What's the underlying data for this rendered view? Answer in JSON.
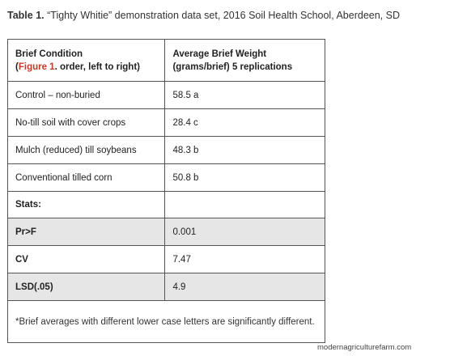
{
  "caption": {
    "label": "Table 1.",
    "text": "“Tighty Whitie” demonstration data set, 2016 Soil Health School, Aberdeen, SD"
  },
  "table": {
    "header": {
      "col1_line1": "Brief Condition",
      "col1_paren_open": "(",
      "col1_figure": "Figure 1",
      "col1_rest": ". order, left to right)",
      "col2_line1": "Average Brief Weight",
      "col2_line2": "(grams/brief) 5 replications"
    },
    "rows": [
      {
        "condition": "Control – non-buried",
        "weight": "58.5 a"
      },
      {
        "condition": "No-till soil with cover crops",
        "weight": "28.4 c"
      },
      {
        "condition": "Mulch (reduced) till soybeans",
        "weight": "48.3 b"
      },
      {
        "condition": "Conventional tilled corn",
        "weight": "50.8 b"
      }
    ],
    "stats_label": "Stats:",
    "stats": [
      {
        "name": "Pr>F",
        "value": "0.001"
      },
      {
        "name": "CV",
        "value": "7.47"
      },
      {
        "name": "LSD(.05)",
        "value": "4.9"
      }
    ],
    "footnote": "*Brief averages with different lower case letters are significantly different."
  },
  "watermark": "modernagriculturefarm.com"
}
